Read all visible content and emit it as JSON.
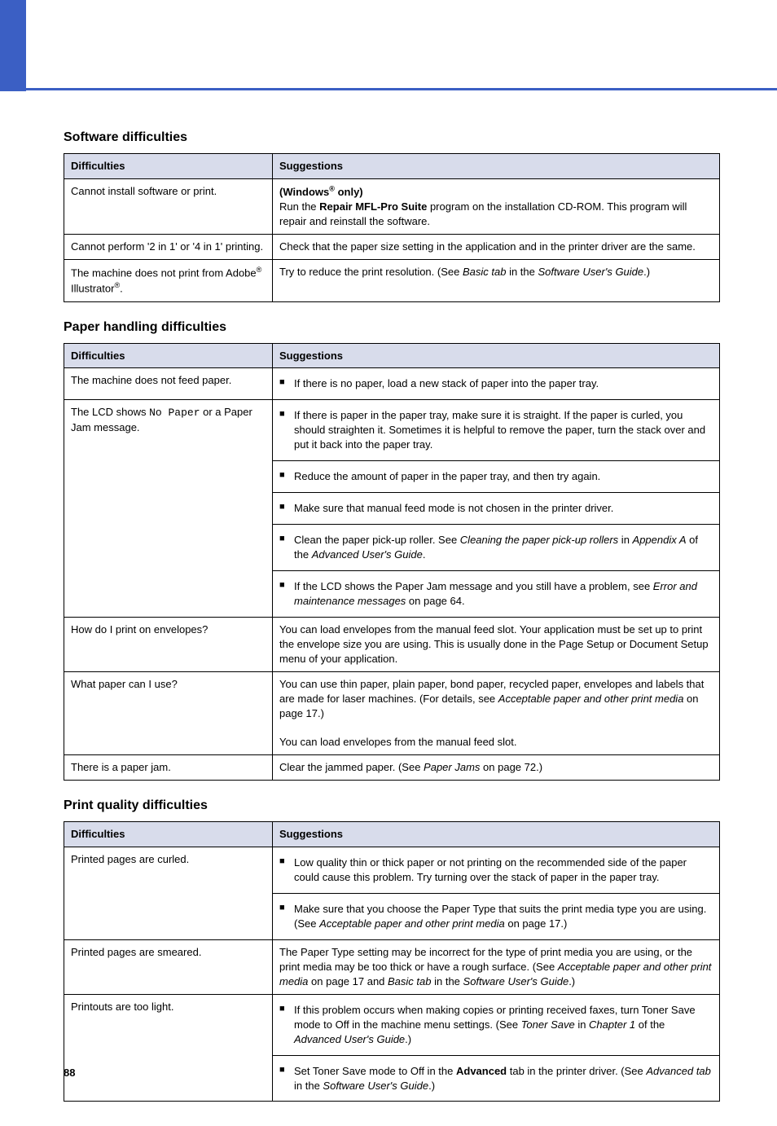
{
  "page_number": "88",
  "sections": [
    {
      "title": "Software difficulties",
      "header": {
        "c1": "Difficulties",
        "c2": "Suggestions"
      },
      "head_bg": "#d8dceb",
      "rows": [
        {
          "difficulty_html": "Cannot install software or print.",
          "suggestion_html": "<b>(Windows<span class=\"sup\">®</span> only)</b><br>Run the <b>Repair MFL-Pro Suite</b> program on the installation CD-ROM. This program will repair and reinstall the software."
        },
        {
          "difficulty_html": "Cannot perform '2 in 1' or '4 in 1' printing.",
          "suggestion_html": "Check that the paper size setting in the application and in the printer driver are the same."
        },
        {
          "difficulty_html": "The machine does not print from Adobe<span class=\"sup\">®</span> Illustrator<span class=\"sup\">®</span>.",
          "suggestion_html": "Try to reduce the print resolution. (See <span class=\"italic\">Basic tab</span> in the <span class=\"italic\">Software User's Guide</span>.)"
        }
      ]
    },
    {
      "title": "Paper handling difficulties",
      "header": {
        "c1": "Difficulties",
        "c2": "Suggestions"
      },
      "head_bg": "#d8dceb",
      "rows": [
        {
          "difficulty_html": "The machine does not feed paper.",
          "suggestion_html": "<ul class=\"bullet-list\"><li>If there is no paper, load a new stack of paper into the paper tray.</li></ul>",
          "rowspan_diff": 1,
          "merge_next": true
        },
        {
          "difficulty_html": "The LCD shows <span class=\"mono\">No Paper</span> or a Paper Jam message.",
          "suggestion_html": "<ul class=\"bullet-list\"><li>If there is paper in the paper tray, make sure it is straight. If the paper is curled, you should straighten it. Sometimes it is helpful to remove the paper, turn the stack over and put it back into the paper tray.</li><li>Reduce the amount of paper in the paper tray, and then try again.</li><li>Make sure that manual feed mode is not chosen in the printer driver.</li><li>Clean the paper pick-up roller. See <span class=\"italic\">Cleaning the paper pick-up rollers</span> in <span class=\"italic\">Appendix A</span> of the <span class=\"italic\">Advanced User's Guide</span>.</li><li>If the LCD shows the Paper Jam message and you still have a problem, see <span class=\"italic\">Error and maintenance messages</span> on page 64.</li></ul>",
          "diff_rowspan": 5
        },
        {
          "difficulty_html": "How do I print on envelopes?",
          "suggestion_html": "You can load envelopes from the manual feed slot. Your application must be set up to print the envelope size you are using. This is usually done in the Page Setup or Document Setup menu of your application."
        },
        {
          "difficulty_html": "What paper can I use?",
          "suggestion_html": "You can use thin paper, plain paper, bond paper, recycled paper, envelopes and labels that are made for laser machines. (For details, see <span class=\"italic\">Acceptable paper and other print media</span> on page 17.)<br><br>You can load envelopes from the manual feed slot."
        },
        {
          "difficulty_html": "There is a paper jam.",
          "suggestion_html": "Clear the jammed paper. (See <span class=\"italic\">Paper Jams</span> on page 72.)"
        }
      ]
    },
    {
      "title": "Print quality difficulties",
      "header": {
        "c1": "Difficulties",
        "c2": "Suggestions"
      },
      "head_bg": "#d8dceb",
      "rows": [
        {
          "difficulty_html": "Printed pages are curled.",
          "suggestion_html": "<ul class=\"bullet-list\"><li>Low quality thin or thick paper or not printing on the recommended side of the paper could cause this problem. Try turning over the stack of paper in the paper tray.</li><li>Make sure that you choose the Paper Type that suits the print media type you are using. (See <span class=\"italic\">Acceptable paper and other print media</span> on page 17.)</li></ul>"
        },
        {
          "difficulty_html": "Printed pages are smeared.",
          "suggestion_html": "The Paper Type setting may be incorrect for the type of print media you are using, or the print media may be too thick or have a rough surface. (See <span class=\"italic\">Acceptable paper and other print media</span> on page 17 and <span class=\"italic\">Basic tab</span> in the <span class=\"italic\">Software User's Guide</span>.)"
        },
        {
          "difficulty_html": "Printouts are too light.",
          "suggestion_html": "<ul class=\"bullet-list\"><li>If this problem occurs when making copies or printing received faxes, turn Toner Save mode to Off in the machine menu settings. (See <span class=\"italic\">Toner Save</span> in <span class=\"italic\">Chapter 1</span> of the <span class=\"italic\">Advanced User's Guide</span>.)</li><li>Set Toner Save mode to Off in the <b>Advanced</b> tab in the printer driver. (See <span class=\"italic\">Advanced tab</span> in the <span class=\"italic\">Software User's Guide</span>.)</li></ul>"
        }
      ]
    }
  ]
}
